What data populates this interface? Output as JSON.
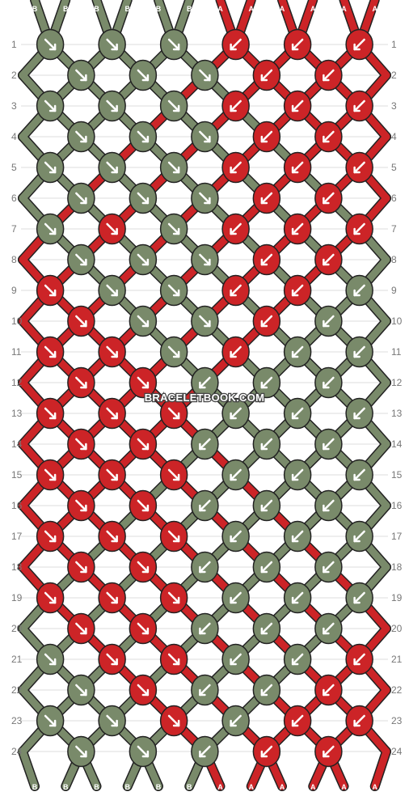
{
  "pattern": {
    "watermark": "BRACELETBOOK.COM",
    "colors": {
      "A": "#cc2427",
      "B": "#798a6a"
    },
    "top_strands": [
      "B",
      "B",
      "B",
      "B",
      "B",
      "B",
      "A",
      "A",
      "A",
      "A",
      "A",
      "A"
    ],
    "bottom_strands": [
      "B",
      "B",
      "B",
      "B",
      "B",
      "B",
      "A",
      "A",
      "A",
      "A",
      "A",
      "A"
    ],
    "row_labels": [
      "1",
      "2",
      "3",
      "4",
      "5",
      "6",
      "7",
      "8",
      "9",
      "10",
      "11",
      "12",
      "13",
      "14",
      "15",
      "16",
      "17",
      "18",
      "19",
      "20",
      "21",
      "22",
      "23",
      "24"
    ],
    "knots": [
      [
        "BR",
        "BR",
        "BR",
        "AL",
        "AL",
        "AL"
      ],
      [
        "BR",
        "BR",
        "BR",
        "AL",
        "AL"
      ],
      [
        "BR",
        "BR",
        "BR",
        "AL",
        "AL",
        "AL"
      ],
      [
        "BR",
        "BR",
        "BR",
        "AL",
        "AL"
      ],
      [
        "BR",
        "BR",
        "BR",
        "AL",
        "AL",
        "AL"
      ],
      [
        "BR",
        "BR",
        "BR",
        "AL",
        "AL"
      ],
      [
        "BR",
        "AR",
        "BR",
        "AL",
        "AL",
        "AL"
      ],
      [
        "BR",
        "BR",
        "BR",
        "AL",
        "AL"
      ],
      [
        "AR",
        "BR",
        "BR",
        "AL",
        "AL",
        "BL"
      ],
      [
        "AR",
        "BR",
        "BR",
        "AL",
        "BL"
      ],
      [
        "AR",
        "AR",
        "BR",
        "AL",
        "BL",
        "BL"
      ],
      [
        "AR",
        "AR",
        "BL",
        "BL",
        "BL"
      ],
      [
        "AR",
        "AR",
        "AR",
        "BL",
        "BL",
        "BL"
      ],
      [
        "AR",
        "AR",
        "BL",
        "BL",
        "BL"
      ],
      [
        "AR",
        "AR",
        "AR",
        "BL",
        "BL",
        "BL"
      ],
      [
        "AR",
        "AR",
        "BL",
        "BL",
        "BL"
      ],
      [
        "AR",
        "AR",
        "AR",
        "BL",
        "BL",
        "BL"
      ],
      [
        "AR",
        "AR",
        "BL",
        "BL",
        "BL"
      ],
      [
        "AR",
        "AR",
        "AR",
        "BL",
        "BL",
        "BL"
      ],
      [
        "AR",
        "AR",
        "BL",
        "BL",
        "BL"
      ],
      [
        "BR",
        "AR",
        "AR",
        "BL",
        "BL",
        "AL"
      ],
      [
        "BR",
        "AR",
        "BL",
        "BL",
        "AL"
      ],
      [
        "BR",
        "BR",
        "AR",
        "BL",
        "AL",
        "AL"
      ],
      [
        "BR",
        "BR",
        "BL",
        "AL",
        "AL"
      ]
    ]
  }
}
